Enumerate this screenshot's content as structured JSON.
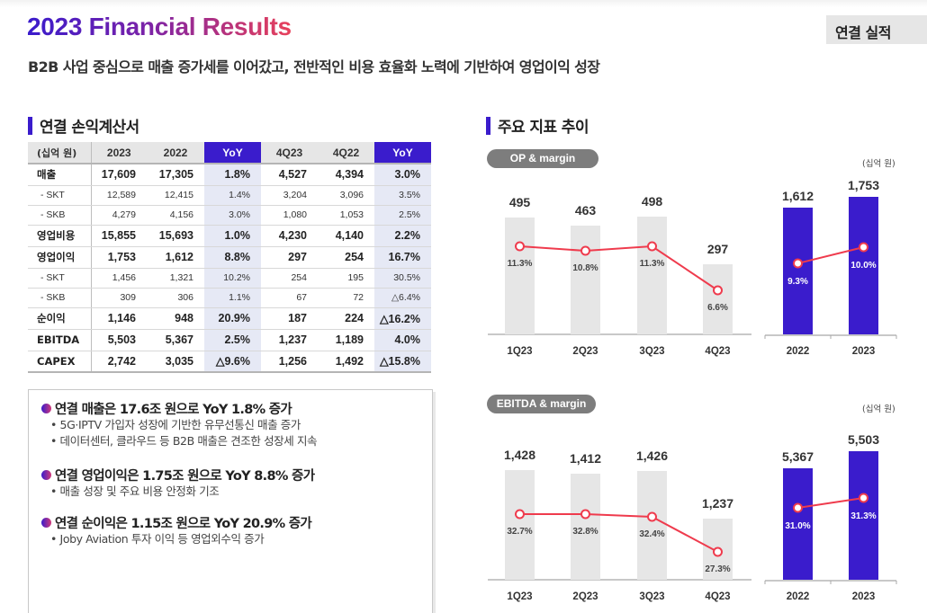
{
  "header": {
    "title": "2023 Financial Results",
    "subtitle": "B2B 사업 중심으로 매출 증가세를 이어갔고, 전반적인 비용 효율화 노력에 기반하여 영업이익 성장",
    "tag": "연결 실적"
  },
  "colors": {
    "brand_purple": "#3a1ccc",
    "brand_pink": "#e8415a",
    "line_red": "#ef3b4d",
    "bar_gray": "#e6e6e6",
    "yoy_col_bg": "#e6e9f5"
  },
  "income_statement": {
    "section_title": "연결 손익계산서",
    "columns": [
      "(십억 원)",
      "2023",
      "2022",
      "YoY",
      "4Q23",
      "4Q22",
      "YoY"
    ],
    "rows": [
      {
        "label": "매출",
        "type": "main",
        "values": [
          "17,609",
          "17,305",
          "1.8%",
          "4,527",
          "4,394",
          "3.0%"
        ]
      },
      {
        "label": "- SKT",
        "type": "sub",
        "values": [
          "12,589",
          "12,415",
          "1.4%",
          "3,204",
          "3,096",
          "3.5%"
        ]
      },
      {
        "label": "- SKB",
        "type": "sub",
        "values": [
          "4,279",
          "4,156",
          "3.0%",
          "1,080",
          "1,053",
          "2.5%"
        ]
      },
      {
        "label": "영업비용",
        "type": "main",
        "values": [
          "15,855",
          "15,693",
          "1.0%",
          "4,230",
          "4,140",
          "2.2%"
        ]
      },
      {
        "label": "영업이익",
        "type": "main",
        "values": [
          "1,753",
          "1,612",
          "8.8%",
          "297",
          "254",
          "16.7%"
        ]
      },
      {
        "label": "- SKT",
        "type": "sub",
        "values": [
          "1,456",
          "1,321",
          "10.2%",
          "254",
          "195",
          "30.5%"
        ]
      },
      {
        "label": "- SKB",
        "type": "sub",
        "values": [
          "309",
          "306",
          "1.1%",
          "67",
          "72",
          "△6.4%"
        ]
      },
      {
        "label": "순이익",
        "type": "main",
        "values": [
          "1,146",
          "948",
          "20.9%",
          "187",
          "224",
          "△16.2%"
        ]
      },
      {
        "label": "EBITDA",
        "type": "main",
        "values": [
          "5,503",
          "5,367",
          "2.5%",
          "1,237",
          "1,189",
          "4.0%"
        ]
      },
      {
        "label": "CAPEX",
        "type": "main",
        "values": [
          "2,742",
          "3,035",
          "△9.6%",
          "1,256",
          "1,492",
          "△15.8%"
        ]
      }
    ]
  },
  "summary": [
    {
      "headline": "연결 매출은 17.6조 원으로 YoY 1.8% 증가",
      "items": [
        "5G·IPTV 가입자 성장에 기반한 유무선통신 매출 증가",
        "데이터센터, 클라우드 등 B2B 매출은 견조한 성장세 지속"
      ]
    },
    {
      "headline": "연결 영업이익은 1.75조 원으로 YoY 8.8% 증가",
      "items": [
        "매출 성장 및 주요 비용 안정화 기조"
      ]
    },
    {
      "headline": "연결 순이익은 1.15조 원으로 YoY 20.9% 증가",
      "items": [
        "Joby Aviation 투자 이익 등 영업외수익 증가"
      ]
    }
  ],
  "trends": {
    "section_title": "주요 지표 추이",
    "unit": "(십억 원)"
  },
  "chart_data": [
    {
      "type": "bar",
      "title": "OP & margin",
      "unit": "(십억 원)",
      "categories": [
        "1Q23",
        "2Q23",
        "3Q23",
        "4Q23"
      ],
      "series": [
        {
          "name": "OP",
          "type": "bar",
          "values": [
            495,
            463,
            498,
            297
          ],
          "labels": [
            "495",
            "463",
            "498",
            "297"
          ]
        },
        {
          "name": "margin",
          "type": "line",
          "values": [
            11.3,
            10.8,
            11.3,
            6.6
          ],
          "labels": [
            "11.3%",
            "10.8%",
            "11.3%",
            "6.6%"
          ]
        }
      ]
    },
    {
      "type": "bar",
      "title": "OP & margin (annual)",
      "categories": [
        "2022",
        "2023"
      ],
      "series": [
        {
          "name": "OP",
          "type": "bar",
          "values": [
            1612,
            1753
          ],
          "labels": [
            "1,612",
            "1,753"
          ]
        },
        {
          "name": "margin",
          "type": "line",
          "values": [
            9.3,
            10.0
          ],
          "labels": [
            "9.3%",
            "10.0%"
          ]
        }
      ]
    },
    {
      "type": "bar",
      "title": "EBITDA & margin",
      "unit": "(십억 원)",
      "categories": [
        "1Q23",
        "2Q23",
        "3Q23",
        "4Q23"
      ],
      "series": [
        {
          "name": "EBITDA",
          "type": "bar",
          "values": [
            1428,
            1412,
            1426,
            1237
          ],
          "labels": [
            "1,428",
            "1,412",
            "1,426",
            "1,237"
          ]
        },
        {
          "name": "margin",
          "type": "line",
          "values": [
            32.7,
            32.8,
            32.4,
            27.3
          ],
          "labels": [
            "32.7%",
            "32.8%",
            "32.4%",
            "27.3%"
          ]
        }
      ]
    },
    {
      "type": "bar",
      "title": "EBITDA & margin (annual)",
      "categories": [
        "2022",
        "2023"
      ],
      "series": [
        {
          "name": "EBITDA",
          "type": "bar",
          "values": [
            5367,
            5503
          ],
          "labels": [
            "5,367",
            "5,503"
          ]
        },
        {
          "name": "margin",
          "type": "line",
          "values": [
            31.0,
            31.3
          ],
          "labels": [
            "31.0%",
            "31.3%"
          ]
        }
      ]
    }
  ]
}
